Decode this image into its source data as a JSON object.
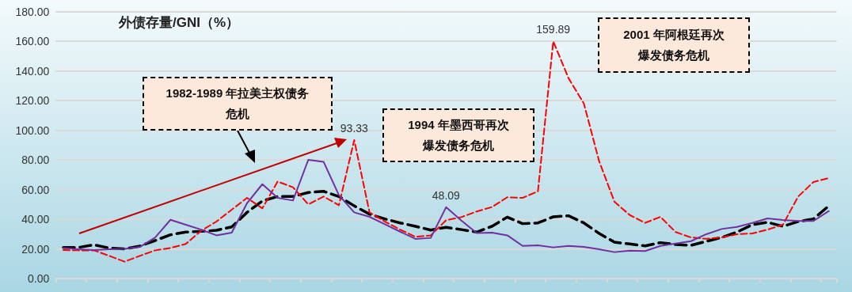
{
  "chart_data": {
    "type": "line",
    "title": "外债存量/GNI（%）",
    "categories": [
      null,
      null,
      null,
      null,
      null,
      null,
      null,
      null,
      null,
      null,
      null,
      null,
      null,
      null,
      null,
      null,
      null,
      null,
      null,
      null,
      null,
      null,
      null,
      null,
      null,
      null,
      null,
      null,
      null,
      null,
      null,
      null,
      null,
      null,
      null,
      null,
      null,
      null,
      null,
      null,
      null,
      null,
      null,
      null,
      null,
      null,
      null,
      null,
      null,
      null,
      null
    ],
    "series": [
      {
        "color": "#7030a0",
        "line_style": "solid",
        "values": [
          20.6,
          19.7,
          19.2,
          19.7,
          20,
          21.3,
          27.7,
          39.6,
          36.3,
          33,
          29.1,
          30.9,
          50.8,
          63.6,
          54.4,
          52.6,
          80,
          78.7,
          56.2,
          44.6,
          41.6,
          36.6,
          31.6,
          26.7,
          27.4,
          48.09,
          39.1,
          30.7,
          30.9,
          29.1,
          22,
          22.4,
          21,
          22,
          21.3,
          19.7,
          17.8,
          18.8,
          18.5,
          22,
          23.6,
          25.2,
          29.9,
          33.4,
          34.8,
          37.5,
          40.5,
          39.5,
          38.8,
          38.8,
          45.5
        ],
        "value_labels": [
          null,
          null,
          null,
          null,
          null,
          null,
          null,
          null,
          null,
          null,
          null,
          null,
          null,
          null,
          null,
          null,
          null,
          null,
          null,
          null,
          null,
          null,
          null,
          null,
          null,
          "48.09",
          null,
          null,
          null,
          null,
          null,
          null,
          null,
          null,
          null,
          null,
          null,
          null,
          null,
          null,
          null,
          null,
          null,
          null,
          null,
          null,
          null,
          null,
          null,
          null,
          null
        ]
      },
      {
        "color": "#ff0000",
        "line_style": "dashed",
        "values": [
          19.2,
          19,
          19,
          15.3,
          11.4,
          15.3,
          19,
          20.6,
          23.3,
          32.2,
          38.4,
          46.4,
          54.4,
          47.3,
          65.4,
          61.5,
          50,
          55.3,
          49.4,
          93.33,
          44.6,
          38.4,
          33,
          28.1,
          29.1,
          39.3,
          41.4,
          45.2,
          48.2,
          54.8,
          54.4,
          58.8,
          159.89,
          135,
          118,
          79,
          51.7,
          42.8,
          37.5,
          41.6,
          31.3,
          27.7,
          26.8,
          27.7,
          29.9,
          30.4,
          33,
          36.3,
          55.3,
          65.1,
          67.7
        ],
        "value_labels": [
          null,
          null,
          null,
          null,
          null,
          null,
          null,
          null,
          null,
          null,
          null,
          null,
          null,
          null,
          null,
          null,
          null,
          null,
          null,
          "93.33",
          null,
          null,
          null,
          null,
          null,
          null,
          null,
          null,
          null,
          null,
          null,
          null,
          "159.89",
          null,
          null,
          null,
          null,
          null,
          null,
          null,
          null,
          null,
          null,
          null,
          null,
          null,
          null,
          null,
          null,
          null,
          null
        ]
      },
      {
        "color": "#000000",
        "line_style": "dashed",
        "values": [
          21,
          21,
          22.7,
          20.6,
          20,
          21.9,
          25.6,
          29.5,
          31.3,
          31.8,
          32.5,
          34.8,
          44.6,
          52.3,
          55.3,
          55.3,
          58,
          58.8,
          55.3,
          49,
          43.4,
          40.2,
          37.5,
          35.2,
          32.7,
          34.5,
          33,
          31.3,
          35.2,
          41.4,
          37,
          37.5,
          41.6,
          42.3,
          37.5,
          30.4,
          24.5,
          23.3,
          22,
          24.2,
          22.9,
          22.4,
          25.1,
          27.7,
          31.3,
          36.3,
          37.9,
          35.2,
          38.4,
          40.2,
          49
        ]
      }
    ],
    "ylim": [
      0,
      180
    ],
    "yticks": [
      {
        "value": 0,
        "label": "0.00"
      },
      {
        "value": 20,
        "label": "20.00"
      },
      {
        "value": 40,
        "label": "40.00"
      },
      {
        "value": 60,
        "label": "60.00"
      },
      {
        "value": 80,
        "label": "80.00"
      },
      {
        "value": 100,
        "label": "100.00"
      },
      {
        "value": 120,
        "label": "120.00"
      },
      {
        "value": 140,
        "label": "140.00"
      },
      {
        "value": 160,
        "label": "160.00"
      },
      {
        "value": 180,
        "label": "180.00"
      }
    ],
    "grid": "y",
    "tick_labels": "y",
    "marker": "none",
    "annotations": [
      "1982-1989 年拉美主权债务危机",
      "1994 年墨西哥再次爆发债务危机",
      "2001 年阿根廷再次爆发债务危机"
    ]
  }
}
